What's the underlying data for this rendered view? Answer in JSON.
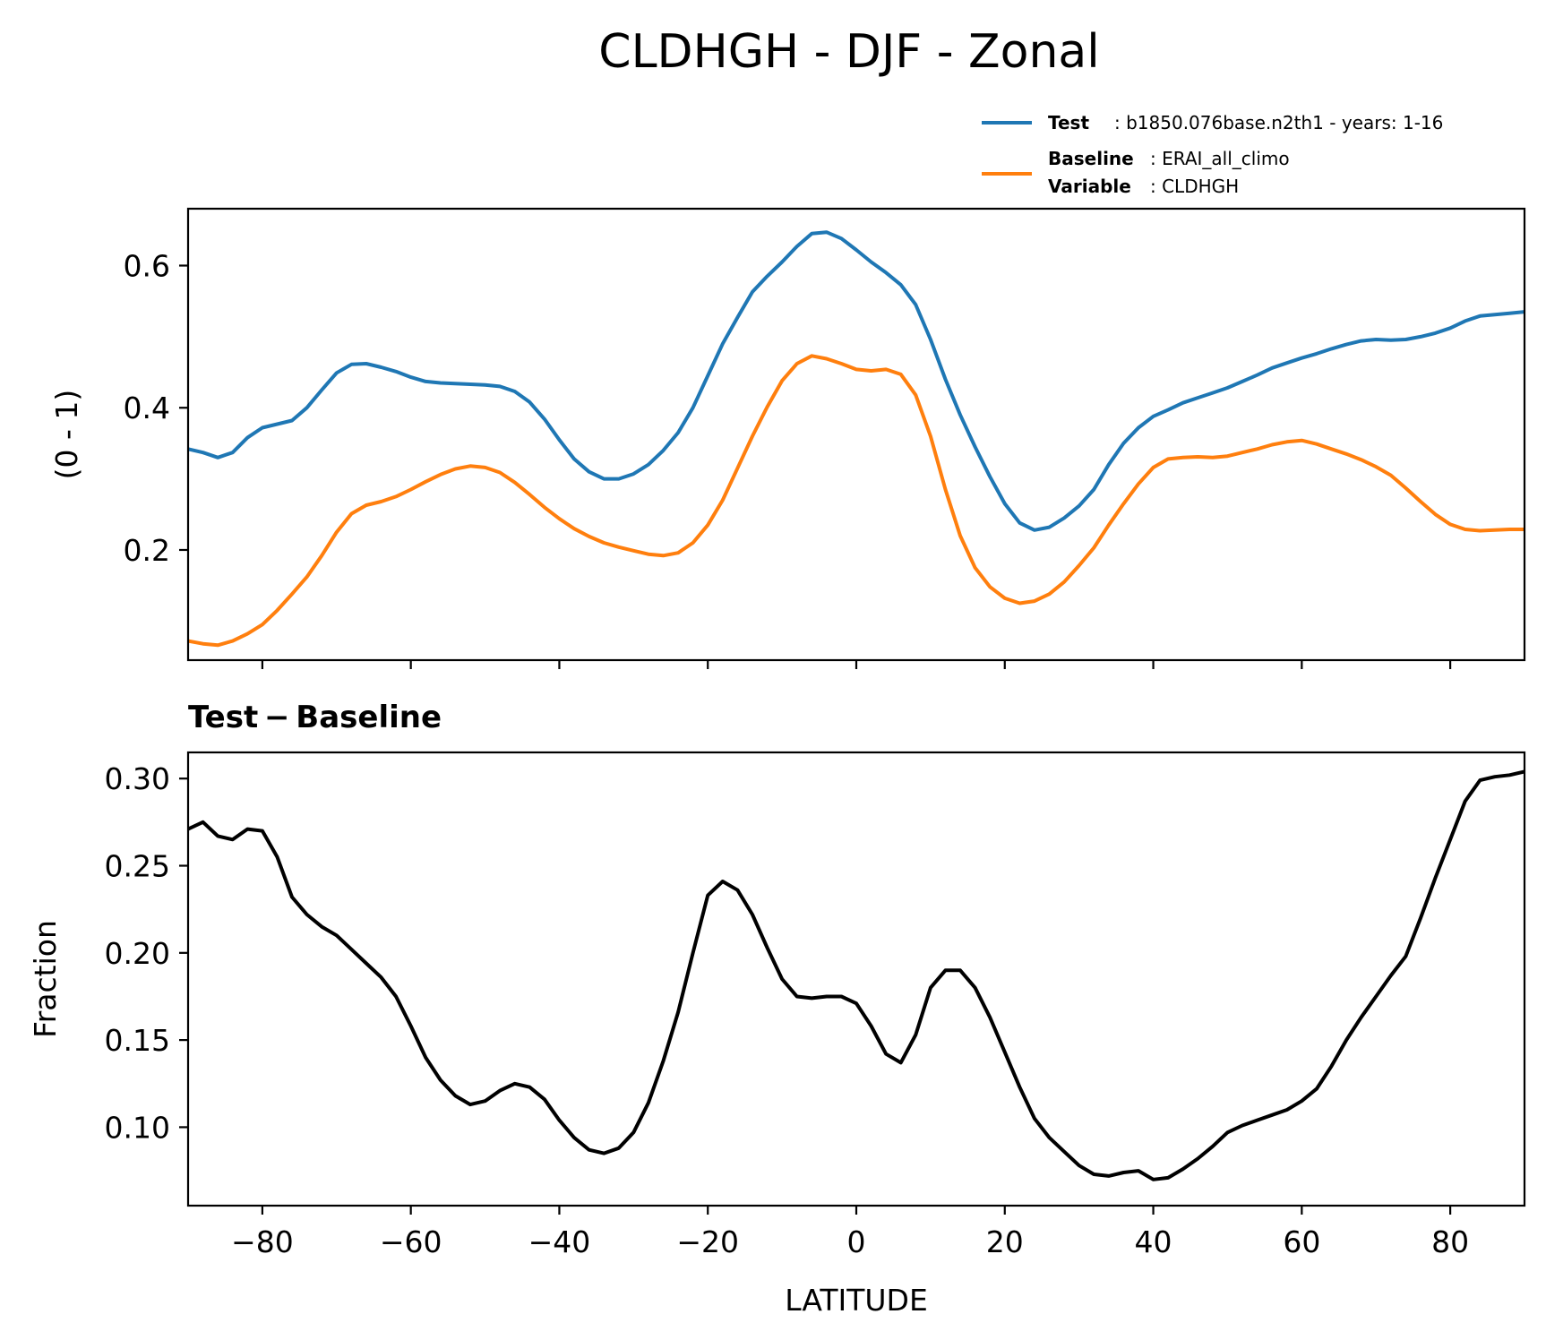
{
  "title": "CLDHGH - DJF - Zonal",
  "legend": {
    "test_key": "Test",
    "test_value": ": b1850.076base.n2th1 - years: 1-16",
    "baseline_key": "Baseline",
    "baseline_value": ": ERAI_all_climo",
    "variable_key": "Variable",
    "variable_value": ": CLDHGH"
  },
  "colors": {
    "test": "#1f77b4",
    "baseline": "#ff7f0e",
    "diff": "#000000"
  },
  "chart_data": [
    {
      "type": "line",
      "ylabel": "(0 - 1)",
      "xlim": [
        -90,
        90
      ],
      "ylim": [
        0.045,
        0.68
      ],
      "yticks": [
        0.2,
        0.4,
        0.6
      ],
      "ytick_labels": [
        "0.2",
        "0.4",
        "0.6"
      ],
      "xticks": [
        -80,
        -60,
        -40,
        -20,
        0,
        20,
        40,
        60,
        80
      ],
      "x": [
        -90,
        -88,
        -86,
        -84,
        -82,
        -80,
        -78,
        -76,
        -74,
        -72,
        -70,
        -68,
        -66,
        -64,
        -62,
        -60,
        -58,
        -56,
        -54,
        -52,
        -50,
        -48,
        -46,
        -44,
        -42,
        -40,
        -38,
        -36,
        -34,
        -32,
        -30,
        -28,
        -26,
        -24,
        -22,
        -20,
        -18,
        -16,
        -14,
        -12,
        -10,
        -8,
        -6,
        -4,
        -2,
        0,
        2,
        4,
        6,
        8,
        10,
        12,
        14,
        16,
        18,
        20,
        22,
        24,
        26,
        28,
        30,
        32,
        34,
        36,
        38,
        40,
        42,
        44,
        46,
        48,
        50,
        52,
        54,
        56,
        58,
        60,
        62,
        64,
        66,
        68,
        70,
        72,
        74,
        76,
        78,
        80,
        82,
        84,
        86,
        88,
        90
      ],
      "series": [
        {
          "name": "Test",
          "values": [
            0.342,
            0.337,
            0.33,
            0.337,
            0.358,
            0.372,
            0.377,
            0.382,
            0.4,
            0.425,
            0.449,
            0.461,
            0.462,
            0.457,
            0.451,
            0.443,
            0.437,
            0.435,
            0.434,
            0.433,
            0.432,
            0.43,
            0.423,
            0.408,
            0.384,
            0.355,
            0.328,
            0.31,
            0.3,
            0.3,
            0.307,
            0.32,
            0.34,
            0.365,
            0.4,
            0.445,
            0.49,
            0.527,
            0.563,
            0.585,
            0.605,
            0.627,
            0.645,
            0.647,
            0.638,
            0.622,
            0.605,
            0.59,
            0.573,
            0.545,
            0.496,
            0.44,
            0.39,
            0.345,
            0.303,
            0.265,
            0.238,
            0.228,
            0.232,
            0.245,
            0.262,
            0.285,
            0.32,
            0.35,
            0.372,
            0.388,
            0.397,
            0.407,
            0.414,
            0.421,
            0.428,
            0.437,
            0.446,
            0.456,
            0.463,
            0.47,
            0.476,
            0.483,
            0.489,
            0.494,
            0.496,
            0.495,
            0.496,
            0.5,
            0.505,
            0.512,
            0.522,
            0.529,
            0.531,
            0.533,
            0.535
          ]
        },
        {
          "name": "Baseline",
          "values": [
            0.072,
            0.068,
            0.066,
            0.072,
            0.082,
            0.095,
            0.115,
            0.138,
            0.162,
            0.192,
            0.225,
            0.251,
            0.263,
            0.268,
            0.275,
            0.285,
            0.296,
            0.306,
            0.314,
            0.318,
            0.316,
            0.309,
            0.295,
            0.278,
            0.26,
            0.244,
            0.23,
            0.219,
            0.21,
            0.204,
            0.199,
            0.194,
            0.192,
            0.196,
            0.21,
            0.235,
            0.27,
            0.315,
            0.36,
            0.401,
            0.438,
            0.462,
            0.473,
            0.469,
            0.462,
            0.454,
            0.452,
            0.454,
            0.447,
            0.418,
            0.36,
            0.285,
            0.22,
            0.175,
            0.148,
            0.132,
            0.125,
            0.128,
            0.138,
            0.155,
            0.178,
            0.203,
            0.235,
            0.265,
            0.293,
            0.316,
            0.328,
            0.33,
            0.331,
            0.33,
            0.332,
            0.337,
            0.342,
            0.348,
            0.352,
            0.354,
            0.349,
            0.342,
            0.335,
            0.327,
            0.317,
            0.305,
            0.287,
            0.268,
            0.25,
            0.236,
            0.229,
            0.227,
            0.228,
            0.229,
            0.229
          ]
        }
      ]
    },
    {
      "type": "line",
      "title": "Test − Baseline",
      "ylabel": "Fraction",
      "xlabel": "LATITUDE",
      "xlim": [
        -90,
        90
      ],
      "ylim": [
        0.055,
        0.315
      ],
      "yticks": [
        0.1,
        0.15,
        0.2,
        0.25,
        0.3
      ],
      "ytick_labels": [
        "0.10",
        "0.15",
        "0.20",
        "0.25",
        "0.30"
      ],
      "xticks": [
        -80,
        -60,
        -40,
        -20,
        0,
        20,
        40,
        60,
        80
      ],
      "xtick_labels": [
        "−80",
        "−60",
        "−40",
        "−20",
        "0",
        "20",
        "40",
        "60",
        "80"
      ],
      "x": [
        -90,
        -88,
        -86,
        -84,
        -82,
        -80,
        -78,
        -76,
        -74,
        -72,
        -70,
        -68,
        -66,
        -64,
        -62,
        -60,
        -58,
        -56,
        -54,
        -52,
        -50,
        -48,
        -46,
        -44,
        -42,
        -40,
        -38,
        -36,
        -34,
        -32,
        -30,
        -28,
        -26,
        -24,
        -22,
        -20,
        -18,
        -16,
        -14,
        -12,
        -10,
        -8,
        -6,
        -4,
        -2,
        0,
        2,
        4,
        6,
        8,
        10,
        12,
        14,
        16,
        18,
        20,
        22,
        24,
        26,
        28,
        30,
        32,
        34,
        36,
        38,
        40,
        42,
        44,
        46,
        48,
        50,
        52,
        54,
        56,
        58,
        60,
        62,
        64,
        66,
        68,
        70,
        72,
        74,
        76,
        78,
        80,
        82,
        84,
        86,
        88,
        90
      ],
      "series": [
        {
          "values": [
            0.271,
            0.275,
            0.267,
            0.265,
            0.271,
            0.27,
            0.255,
            0.232,
            0.222,
            0.215,
            0.21,
            0.202,
            0.194,
            0.186,
            0.175,
            0.158,
            0.14,
            0.127,
            0.118,
            0.113,
            0.115,
            0.121,
            0.125,
            0.123,
            0.116,
            0.104,
            0.094,
            0.087,
            0.085,
            0.088,
            0.097,
            0.114,
            0.138,
            0.166,
            0.2,
            0.233,
            0.241,
            0.236,
            0.222,
            0.203,
            0.185,
            0.175,
            0.174,
            0.175,
            0.175,
            0.171,
            0.158,
            0.142,
            0.137,
            0.153,
            0.18,
            0.19,
            0.19,
            0.18,
            0.163,
            0.143,
            0.123,
            0.105,
            0.094,
            0.086,
            0.078,
            0.073,
            0.072,
            0.074,
            0.075,
            0.07,
            0.071,
            0.076,
            0.082,
            0.089,
            0.097,
            0.101,
            0.104,
            0.107,
            0.11,
            0.115,
            0.122,
            0.135,
            0.15,
            0.163,
            0.175,
            0.187,
            0.198,
            0.22,
            0.243,
            0.265,
            0.287,
            0.299,
            0.301,
            0.302,
            0.304
          ]
        }
      ]
    }
  ]
}
